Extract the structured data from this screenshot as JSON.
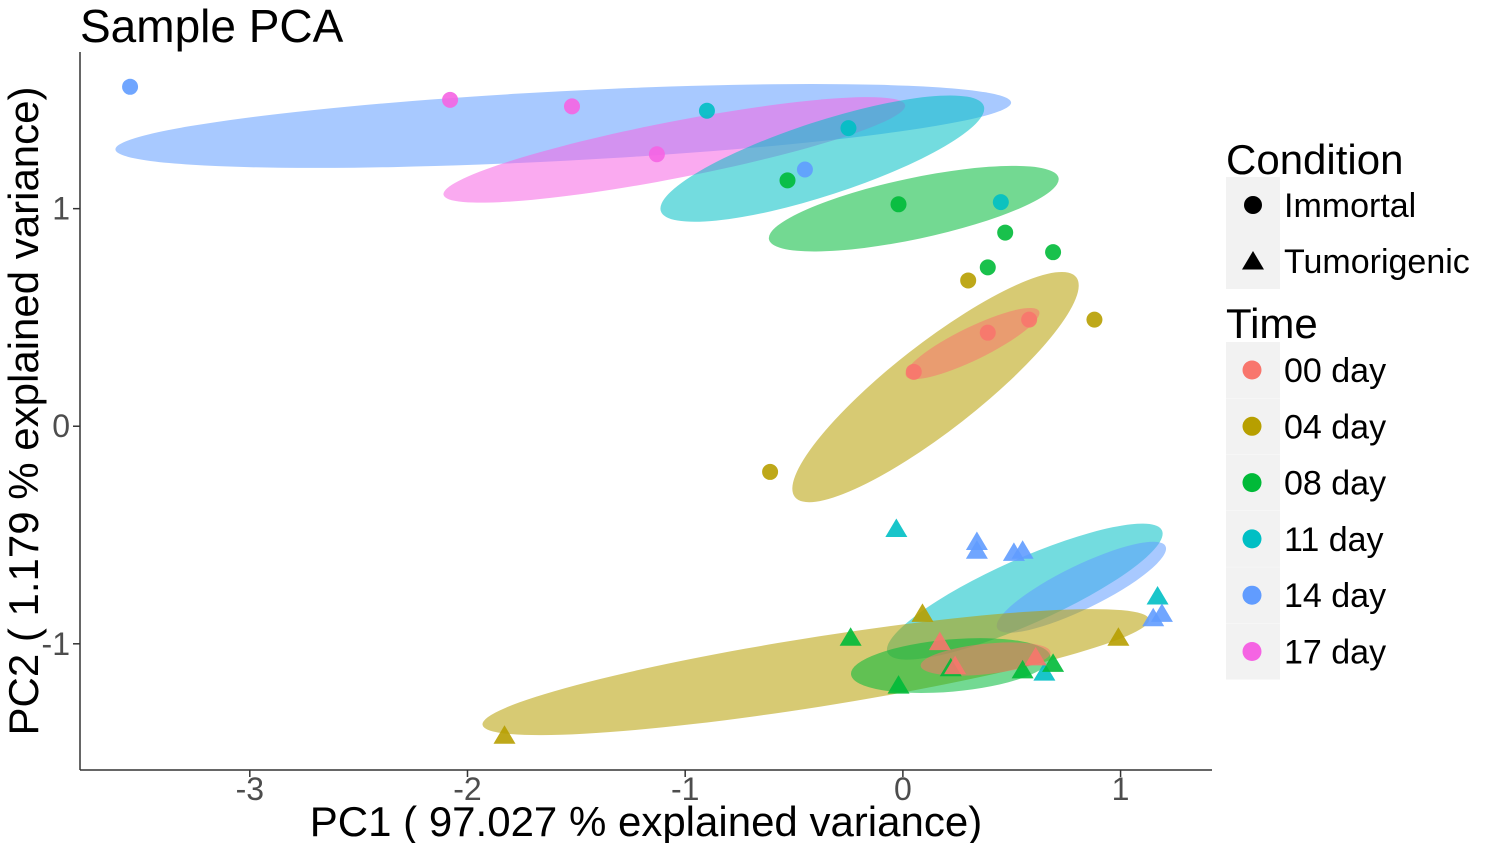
{
  "chart_data": {
    "type": "scatter",
    "title": "Sample PCA",
    "xlabel": "PC1 ( 97.027 % explained variance)",
    "ylabel": "PC2 ( 1.179 % explained variance)",
    "xlim": [
      -3.78,
      1.42
    ],
    "ylim": [
      -1.58,
      1.72
    ],
    "xticks": [
      -3,
      -2,
      -1,
      0,
      1
    ],
    "yticks": [
      -1,
      0,
      1
    ],
    "grid": false,
    "legend_position": "right",
    "legend": {
      "condition_title": "Condition",
      "conditions": [
        {
          "name": "Immortal",
          "shape": "circle"
        },
        {
          "name": "Tumorigenic",
          "shape": "triangle"
        }
      ],
      "time_title": "Time",
      "times": [
        {
          "name": "00 day",
          "color": "#F8766D"
        },
        {
          "name": "04 day",
          "color": "#B79F00"
        },
        {
          "name": "08 day",
          "color": "#00BA38"
        },
        {
          "name": "11 day",
          "color": "#00BFC4"
        },
        {
          "name": "14 day",
          "color": "#619CFF"
        },
        {
          "name": "17 day",
          "color": "#F564E3"
        }
      ]
    },
    "series": [
      {
        "name": "17 day",
        "condition": "Immortal",
        "color": "#F564E3",
        "points": [
          [
            -2.08,
            1.5
          ],
          [
            -1.52,
            1.47
          ],
          [
            -1.13,
            1.25
          ]
        ]
      },
      {
        "name": "14 day",
        "condition": "Immortal",
        "color": "#619CFF",
        "points": [
          [
            -3.55,
            1.56
          ],
          [
            -0.45,
            1.18
          ]
        ]
      },
      {
        "name": "11 day",
        "condition": "Immortal",
        "color": "#00BFC4",
        "points": [
          [
            -0.9,
            1.45
          ],
          [
            -0.25,
            1.37
          ],
          [
            0.45,
            1.03
          ]
        ]
      },
      {
        "name": "08 day",
        "condition": "Immortal",
        "color": "#00BA38",
        "points": [
          [
            -0.53,
            1.13
          ],
          [
            -0.02,
            1.02
          ],
          [
            0.47,
            0.89
          ],
          [
            0.69,
            0.8
          ],
          [
            0.39,
            0.73
          ]
        ]
      },
      {
        "name": "04 day",
        "condition": "Immortal",
        "color": "#B79F00",
        "points": [
          [
            0.3,
            0.67
          ],
          [
            0.88,
            0.49
          ],
          [
            -0.61,
            -0.21
          ]
        ]
      },
      {
        "name": "00 day",
        "condition": "Immortal",
        "color": "#F8766D",
        "points": [
          [
            0.58,
            0.49
          ],
          [
            0.39,
            0.43
          ],
          [
            0.05,
            0.25
          ]
        ]
      },
      {
        "name": "11 day",
        "condition": "Tumorigenic",
        "color": "#00BFC4",
        "points": [
          [
            -0.03,
            -0.47
          ],
          [
            1.17,
            -0.78
          ],
          [
            0.65,
            -1.13
          ]
        ]
      },
      {
        "name": "14 day",
        "condition": "Tumorigenic",
        "color": "#619CFF",
        "points": [
          [
            0.34,
            -0.53
          ],
          [
            0.34,
            -0.57
          ],
          [
            0.51,
            -0.58
          ],
          [
            0.55,
            -0.57
          ],
          [
            1.15,
            -0.88
          ],
          [
            1.19,
            -0.86
          ]
        ]
      },
      {
        "name": "08 day",
        "condition": "Tumorigenic",
        "color": "#00BA38",
        "points": [
          [
            -0.24,
            -0.97
          ],
          [
            -0.02,
            -1.19
          ],
          [
            0.55,
            -1.12
          ],
          [
            0.69,
            -1.09
          ],
          [
            0.22,
            -1.11
          ]
        ]
      },
      {
        "name": "04 day",
        "condition": "Tumorigenic",
        "color": "#B79F00",
        "points": [
          [
            0.09,
            -0.86
          ],
          [
            0.99,
            -0.97
          ],
          [
            -1.83,
            -1.42
          ]
        ]
      },
      {
        "name": "00 day",
        "condition": "Tumorigenic",
        "color": "#F8766D",
        "points": [
          [
            0.17,
            -0.99
          ],
          [
            0.24,
            -1.1
          ],
          [
            0.61,
            -1.06
          ]
        ]
      }
    ],
    "ellipses": [
      {
        "group": "14 day",
        "condition": "Immortal",
        "color": "#619CFF",
        "cx": -1.56,
        "cy": 1.38,
        "rx": 2.06,
        "ry": 0.16,
        "angle_deg": 3
      },
      {
        "group": "17 day",
        "condition": "Immortal",
        "color": "#F564E3",
        "cx": -1.05,
        "cy": 1.27,
        "rx": 1.08,
        "ry": 0.13,
        "angle_deg": 11
      },
      {
        "group": "11 day",
        "condition": "Immortal",
        "color": "#00BFC4",
        "cx": -0.37,
        "cy": 1.23,
        "rx": 0.78,
        "ry": 0.17,
        "angle_deg": 18
      },
      {
        "group": "08 day",
        "condition": "Immortal",
        "color": "#00BA38",
        "cx": 0.05,
        "cy": 1.0,
        "rx": 0.68,
        "ry": 0.14,
        "angle_deg": 12
      },
      {
        "group": "04 day",
        "condition": "Immortal",
        "color": "#B79F00",
        "cx": 0.15,
        "cy": 0.18,
        "rx": 0.82,
        "ry": 0.2,
        "angle_deg": 38
      },
      {
        "group": "00 day",
        "condition": "Immortal",
        "color": "#F8766D",
        "cx": 0.32,
        "cy": 0.38,
        "rx": 0.34,
        "ry": 0.075,
        "angle_deg": 26
      },
      {
        "group": "11 day",
        "condition": "Tumorigenic",
        "color": "#00BFC4",
        "cx": 0.56,
        "cy": -0.76,
        "rx": 0.69,
        "ry": 0.15,
        "angle_deg": 24
      },
      {
        "group": "14 day",
        "condition": "Tumorigenic",
        "color": "#619CFF",
        "cx": 0.82,
        "cy": -0.74,
        "rx": 0.43,
        "ry": 0.1,
        "angle_deg": 26
      },
      {
        "group": "04 day",
        "condition": "Tumorigenic",
        "color": "#B79F00",
        "cx": -0.4,
        "cy": -1.13,
        "rx": 1.55,
        "ry": 0.16,
        "angle_deg": 9
      },
      {
        "group": "08 day",
        "condition": "Tumorigenic",
        "color": "#00BA38",
        "cx": 0.22,
        "cy": -1.1,
        "rx": 0.46,
        "ry": 0.12,
        "angle_deg": 5
      },
      {
        "group": "00 day",
        "condition": "Tumorigenic",
        "color": "#F8766D",
        "cx": 0.38,
        "cy": -1.07,
        "rx": 0.3,
        "ry": 0.07,
        "angle_deg": 6
      }
    ]
  }
}
